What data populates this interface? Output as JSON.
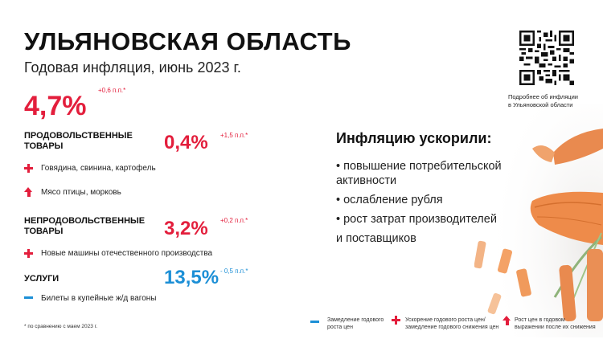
{
  "header": {
    "title": "УЛЬЯНОВСКАЯ ОБЛАСТЬ",
    "subtitle": "Годовая инфляция, июнь 2023 г."
  },
  "overall": {
    "value": "4,7%",
    "delta": "+0,6 п.п.*"
  },
  "food": {
    "label_line1": "ПРОДОВОЛЬСТВЕННЫЕ",
    "label_line2": "ТОВАРЫ",
    "value": "0,4%",
    "delta": "+1,5 п.п.*",
    "items": [
      {
        "icon": "plus-icon",
        "text": "Говядина, свинина, картофель"
      },
      {
        "icon": "arrow-up-icon",
        "text": "Мясо птицы, морковь"
      }
    ]
  },
  "nonfood": {
    "label_line1": "НЕПРОДОВОЛЬСТВЕННЫЕ",
    "label_line2": "ТОВАРЫ",
    "value": "3,2%",
    "delta": "+0,2 п.п.*",
    "items": [
      {
        "icon": "plus-icon",
        "text": "Новые машины отечественного производства"
      }
    ]
  },
  "services": {
    "label": "УСЛУГИ",
    "value": "13,5%",
    "delta": "- 0,5 п.п.*",
    "items": [
      {
        "icon": "minus-icon",
        "text": "Билеты в купейные ж/д вагоны"
      }
    ]
  },
  "accelerators": {
    "heading": "Инфляцию ускорили:",
    "bullets": [
      "повышение потребительской",
      "активности",
      "ослабление рубля",
      "рост затрат производителей",
      "и поставщиков"
    ]
  },
  "qr": {
    "caption_line1": "Подробнее об инфляции",
    "caption_line2": "в Ульяновской области"
  },
  "footnote": "* по сравнению с маем 2023 г.",
  "legend": [
    {
      "icon": "minus-icon",
      "line1": "Замедление годового",
      "line2": "роста цен"
    },
    {
      "icon": "plus-icon",
      "line1": "Ускорение годового роста цен/",
      "line2": "замедление годового снижения цен"
    },
    {
      "icon": "arrow-up-icon",
      "line1": "Рост цен в годовом",
      "line2": "выражении после их снижения"
    }
  ],
  "colors": {
    "accent_red": "#e31e3c",
    "accent_blue": "#1c8fd6",
    "text": "#111111"
  }
}
